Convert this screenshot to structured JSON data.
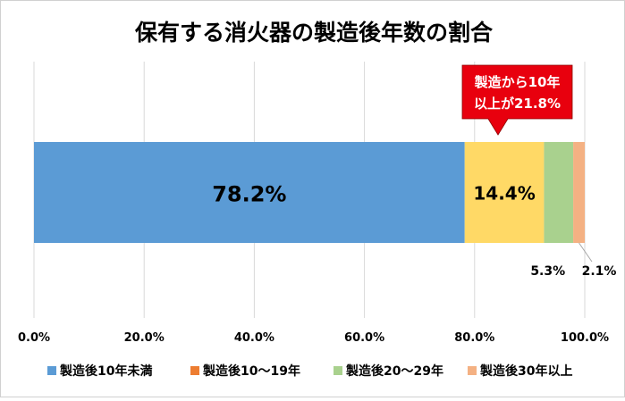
{
  "chart_data": {
    "type": "bar",
    "orientation": "horizontal",
    "stacked": true,
    "title": "保有する消火器の製造後年数の割合",
    "xlim": [
      0,
      100
    ],
    "x_ticks": [
      "0.0%",
      "20.0%",
      "40.0%",
      "60.0%",
      "80.0%",
      "100.0%"
    ],
    "x_tick_values": [
      0,
      20,
      40,
      60,
      80,
      100
    ],
    "grid": true,
    "legend_position": "bottom",
    "series": [
      {
        "name": "製造後10年未満",
        "value": 78.2,
        "label": "78.2%",
        "color": "#5b9bd5",
        "label_color": "#000000"
      },
      {
        "name": "製造後10～19年",
        "value": 14.4,
        "label": "14.4%",
        "color": "#ffd966",
        "legend_color": "#ed7d31",
        "label_color": "#000000"
      },
      {
        "name": "製造後20～29年",
        "value": 5.3,
        "label": "5.3%",
        "color": "#a9d18e",
        "label_color": "#000000"
      },
      {
        "name": "製造後30年以上",
        "value": 2.1,
        "label": "2.1%",
        "color": "#f4b183",
        "label_color": "#000000"
      }
    ],
    "callout": {
      "lines": [
        "製造から10年",
        "以上が21.8%"
      ],
      "fill": "#e8000e",
      "text_color": "#ffffff"
    }
  }
}
